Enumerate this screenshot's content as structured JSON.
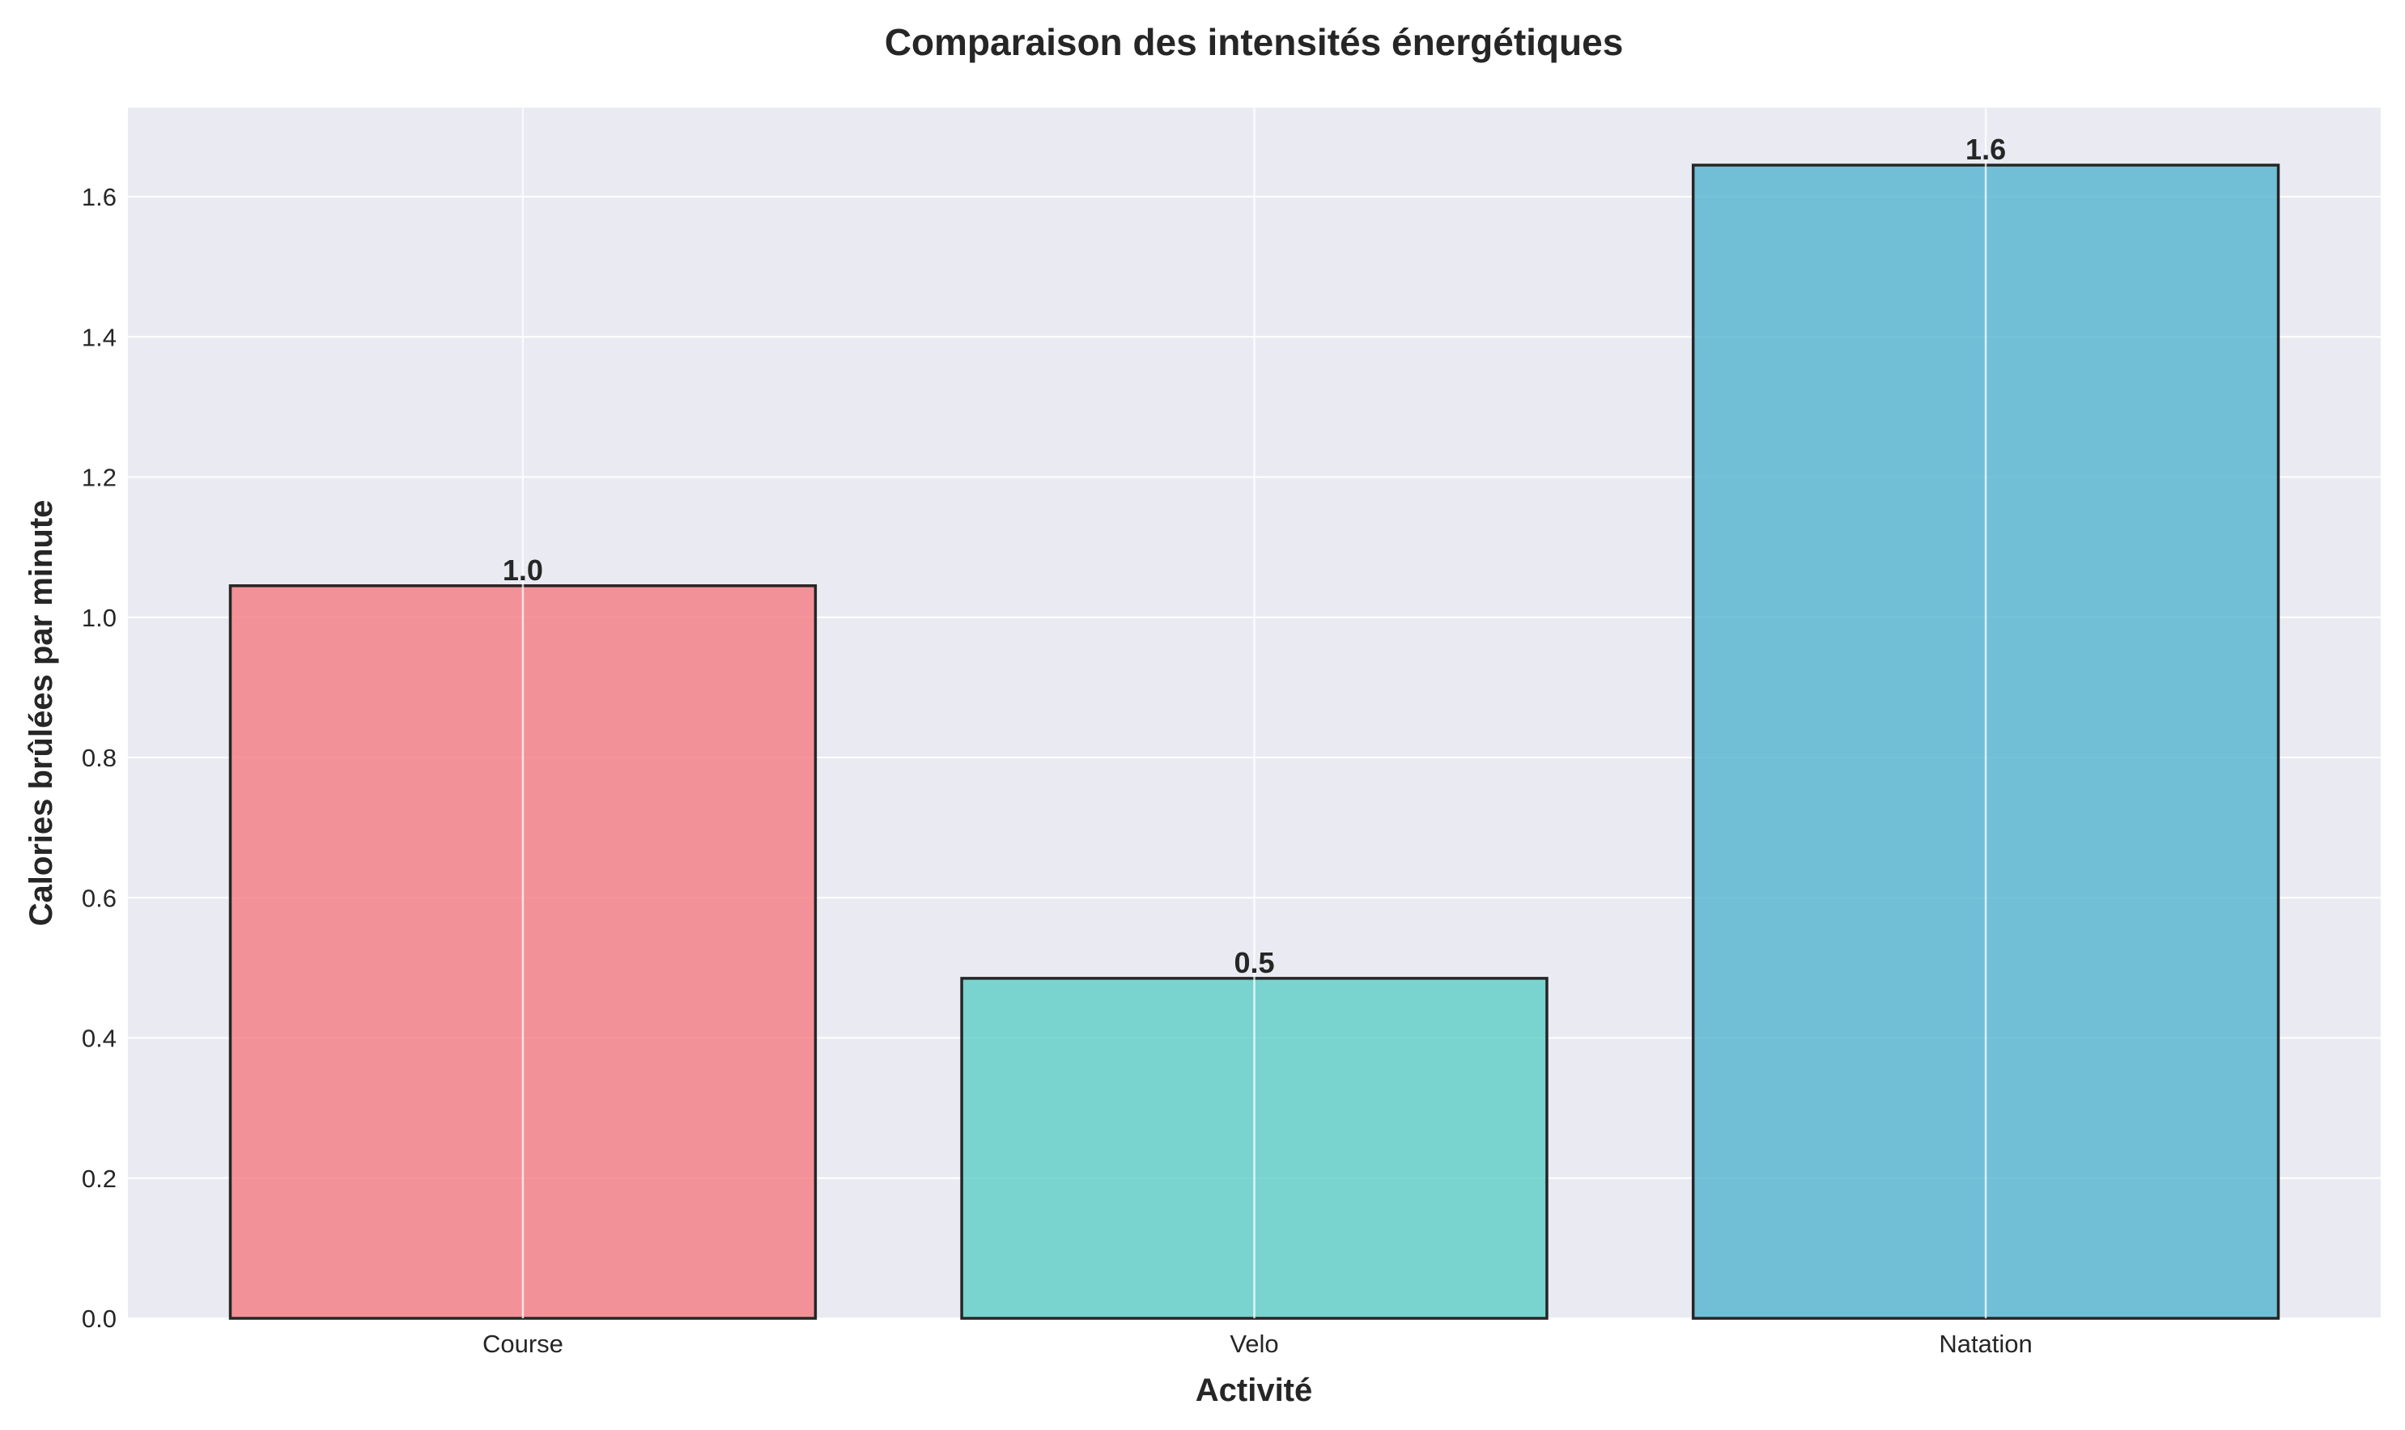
{
  "chart_data": {
    "type": "bar",
    "title": "Comparaison des intensités énergétiques",
    "xlabel": "Activité",
    "ylabel": "Calories brûlées par minute",
    "categories": [
      "Course",
      "Velo",
      "Natation"
    ],
    "values": [
      1.045,
      0.485,
      1.645
    ],
    "value_labels": [
      "1.0",
      "0.5",
      "1.6"
    ],
    "colors": [
      "#f47b80",
      "#5ccdc6",
      "#53b4cf"
    ],
    "ylim": [
      0,
      1.727
    ],
    "yticks": [
      0.0,
      0.2,
      0.4,
      0.6,
      0.8,
      1.0,
      1.2,
      1.4,
      1.6
    ],
    "ytick_labels": [
      "0.0",
      "0.2",
      "0.4",
      "0.6",
      "0.8",
      "1.0",
      "1.2",
      "1.4",
      "1.6"
    ],
    "grid": true,
    "legend": "none"
  }
}
